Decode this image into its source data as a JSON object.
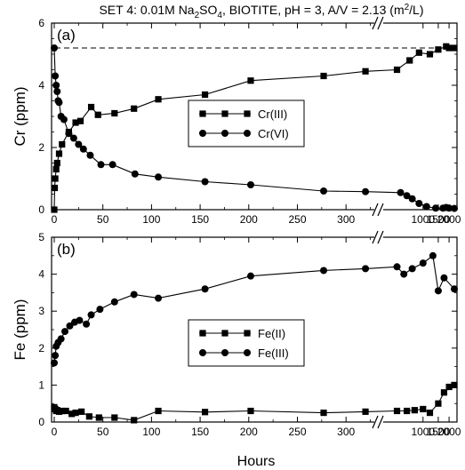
{
  "figure_title": {
    "pre": "SET 4: 0.01M Na",
    "sub1": "2",
    "mid": "SO",
    "sub2": "4",
    "post": ", BIOTITE, pH = 3, A/V = 2.13 (m",
    "sup": "2",
    "end": "/L)"
  },
  "chart_data": [
    {
      "type": "line",
      "panel_label": "(a)",
      "ylabel": "Cr (ppm)",
      "xlabel": "",
      "ylim": [
        0,
        6
      ],
      "y_ticks": [
        "0",
        "2",
        "4",
        "6"
      ],
      "x_ticks": [
        "0",
        "50",
        "100",
        "150",
        "200",
        "250",
        "300",
        "1000",
        "1500",
        "2000"
      ],
      "x_axis_note": "broken axis: linear 0-330 h, then compressed 330-2300 h",
      "reference_line": {
        "y": 5.2,
        "style": "dashed"
      },
      "legend_position": "center-right",
      "series": [
        {
          "name": "Cr(III)",
          "marker": "square",
          "points": [
            [
              0,
              0
            ],
            [
              0.5,
              0.7
            ],
            [
              1,
              1.0
            ],
            [
              2,
              1.3
            ],
            [
              3,
              1.5
            ],
            [
              5,
              1.8
            ],
            [
              8,
              2.1
            ],
            [
              15,
              2.5
            ],
            [
              22,
              2.8
            ],
            [
              27,
              2.85
            ],
            [
              38,
              3.3
            ],
            [
              45,
              3.05
            ],
            [
              62,
              3.1
            ],
            [
              82,
              3.25
            ],
            [
              107,
              3.55
            ],
            [
              155,
              3.7
            ],
            [
              202,
              4.15
            ],
            [
              277,
              4.3
            ],
            [
              320,
              4.45
            ],
            [
              500,
              4.5
            ],
            [
              700,
              4.8
            ],
            [
              900,
              5.05
            ],
            [
              1200,
              5.0
            ],
            [
              1500,
              5.15
            ],
            [
              1850,
              5.25
            ],
            [
              2000,
              5.2
            ],
            [
              2300,
              5.2
            ]
          ]
        },
        {
          "name": "Cr(VI)",
          "marker": "circle",
          "points": [
            [
              0,
              5.2
            ],
            [
              1,
              4.3
            ],
            [
              2,
              4.0
            ],
            [
              3,
              3.8
            ],
            [
              4,
              3.5
            ],
            [
              5,
              3.45
            ],
            [
              7,
              3.0
            ],
            [
              10,
              2.9
            ],
            [
              15,
              2.45
            ],
            [
              20,
              2.3
            ],
            [
              25,
              2.1
            ],
            [
              30,
              1.95
            ],
            [
              37,
              1.75
            ],
            [
              48,
              1.45
            ],
            [
              60,
              1.45
            ],
            [
              83,
              1.15
            ],
            [
              107,
              1.05
            ],
            [
              155,
              0.9
            ],
            [
              202,
              0.8
            ],
            [
              277,
              0.6
            ],
            [
              320,
              0.58
            ],
            [
              550,
              0.55
            ],
            [
              650,
              0.45
            ],
            [
              750,
              0.35
            ],
            [
              900,
              0.2
            ],
            [
              1100,
              0.1
            ],
            [
              1400,
              0.05
            ],
            [
              1700,
              0.05
            ],
            [
              1850,
              0.07
            ],
            [
              2000,
              0.05
            ],
            [
              2300,
              0.04
            ]
          ]
        }
      ]
    },
    {
      "type": "line",
      "panel_label": "(b)",
      "ylabel": "Fe (ppm)",
      "xlabel": "Hours",
      "ylim": [
        0,
        5
      ],
      "y_ticks": [
        "0",
        "1",
        "2",
        "3",
        "4",
        "5"
      ],
      "x_ticks": [
        "0",
        "50",
        "100",
        "150",
        "200",
        "250",
        "300",
        "1000",
        "1500",
        "2000"
      ],
      "legend_position": "center-right",
      "series": [
        {
          "name": "Fe(II)",
          "marker": "square",
          "points": [
            [
              0,
              0.4
            ],
            [
              1,
              0.35
            ],
            [
              2,
              0.3
            ],
            [
              3,
              0.32
            ],
            [
              5,
              0.28
            ],
            [
              8,
              0.3
            ],
            [
              12,
              0.3
            ],
            [
              18,
              0.22
            ],
            [
              22,
              0.25
            ],
            [
              28,
              0.28
            ],
            [
              36,
              0.15
            ],
            [
              46,
              0.12
            ],
            [
              62,
              0.12
            ],
            [
              82,
              0.05
            ],
            [
              107,
              0.3
            ],
            [
              155,
              0.27
            ],
            [
              202,
              0.3
            ],
            [
              277,
              0.25
            ],
            [
              320,
              0.28
            ],
            [
              500,
              0.3
            ],
            [
              650,
              0.3
            ],
            [
              800,
              0.32
            ],
            [
              1000,
              0.35
            ],
            [
              1200,
              0.25
            ],
            [
              1500,
              0.5
            ],
            [
              1750,
              0.8
            ],
            [
              2000,
              0.95
            ],
            [
              2300,
              1.0
            ]
          ]
        },
        {
          "name": "Fe(III)",
          "marker": "circle",
          "points": [
            [
              0,
              1.6
            ],
            [
              1,
              1.8
            ],
            [
              2,
              2.05
            ],
            [
              4,
              2.15
            ],
            [
              7,
              2.25
            ],
            [
              11,
              2.45
            ],
            [
              16,
              2.6
            ],
            [
              21,
              2.7
            ],
            [
              26,
              2.75
            ],
            [
              33,
              2.65
            ],
            [
              38,
              2.9
            ],
            [
              47,
              3.05
            ],
            [
              62,
              3.25
            ],
            [
              82,
              3.45
            ],
            [
              107,
              3.35
            ],
            [
              155,
              3.6
            ],
            [
              202,
              3.95
            ],
            [
              277,
              4.1
            ],
            [
              320,
              4.15
            ],
            [
              500,
              4.2
            ],
            [
              600,
              4.0
            ],
            [
              750,
              4.15
            ],
            [
              1000,
              4.3
            ],
            [
              1300,
              4.5
            ],
            [
              1500,
              3.55
            ],
            [
              1750,
              3.9
            ],
            [
              2300,
              3.6
            ]
          ]
        }
      ]
    }
  ]
}
